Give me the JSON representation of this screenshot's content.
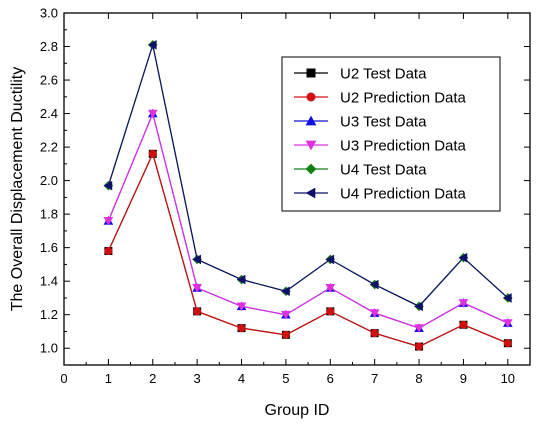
{
  "chart_data": {
    "type": "line",
    "xlabel": "Group ID",
    "ylabel": "The Overall Displacement Ductility",
    "xlim": [
      0,
      10.5
    ],
    "ylim": [
      0.9,
      3.0
    ],
    "x_ticks": [
      0,
      1,
      2,
      3,
      4,
      5,
      6,
      7,
      8,
      9,
      10
    ],
    "y_ticks": [
      1.0,
      1.2,
      1.4,
      1.6,
      1.8,
      2.0,
      2.2,
      2.4,
      2.6,
      2.8,
      3.0
    ],
    "x_tick_labels": [
      "0",
      "1",
      "2",
      "3",
      "4",
      "5",
      "6",
      "7",
      "8",
      "9",
      "10"
    ],
    "y_tick_labels": [
      "1.0",
      "1.2",
      "1.4",
      "1.6",
      "1.8",
      "2.0",
      "2.2",
      "2.4",
      "2.6",
      "2.8",
      "3.0"
    ],
    "grid": false,
    "legend_position": "top-right",
    "x": [
      1,
      2,
      3,
      4,
      5,
      6,
      7,
      8,
      9,
      10
    ],
    "series": [
      {
        "name": "U2 Test Data",
        "color": "#000000",
        "marker": "square",
        "values": [
          1.58,
          2.16,
          1.22,
          1.12,
          1.08,
          1.22,
          1.09,
          1.01,
          1.14,
          1.03
        ]
      },
      {
        "name": "U2 Prediction Data",
        "color": "#d01010",
        "marker": "circle",
        "values": [
          1.58,
          2.16,
          1.22,
          1.12,
          1.08,
          1.22,
          1.09,
          1.01,
          1.14,
          1.03
        ]
      },
      {
        "name": "U3 Test Data",
        "color": "#1010e0",
        "marker": "triangle-up",
        "values": [
          1.76,
          2.4,
          1.36,
          1.25,
          1.2,
          1.36,
          1.21,
          1.12,
          1.27,
          1.15
        ]
      },
      {
        "name": "U3 Prediction Data",
        "color": "#e030e0",
        "marker": "triangle-down",
        "values": [
          1.76,
          2.4,
          1.36,
          1.25,
          1.2,
          1.36,
          1.21,
          1.12,
          1.27,
          1.15
        ]
      },
      {
        "name": "U4 Test Data",
        "color": "#108010",
        "marker": "diamond",
        "values": [
          1.97,
          2.81,
          1.53,
          1.41,
          1.34,
          1.53,
          1.38,
          1.25,
          1.54,
          1.3
        ]
      },
      {
        "name": "U4 Prediction Data",
        "color": "#10106a",
        "marker": "triangle-left",
        "values": [
          1.97,
          2.81,
          1.53,
          1.41,
          1.34,
          1.53,
          1.38,
          1.25,
          1.54,
          1.3
        ]
      }
    ]
  }
}
